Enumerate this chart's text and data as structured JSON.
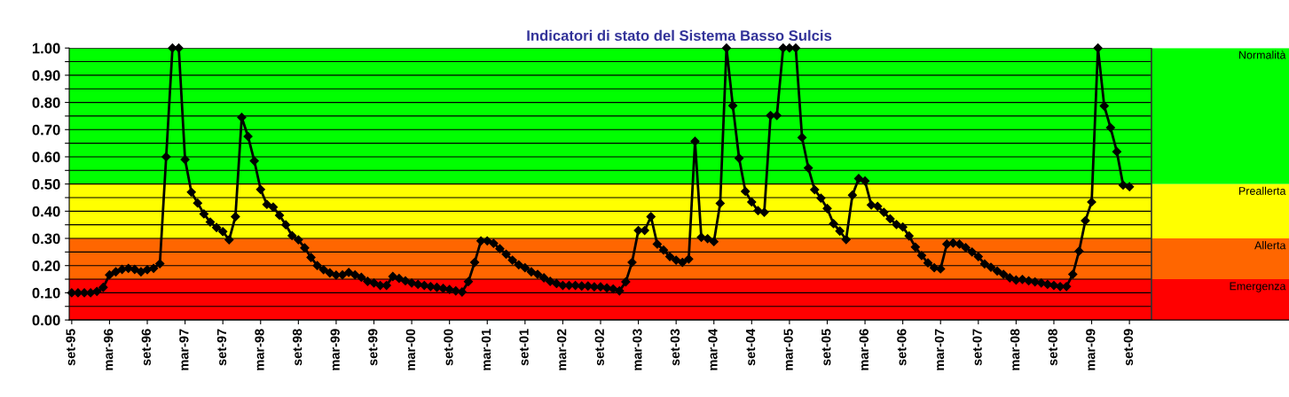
{
  "chart_data": {
    "type": "line",
    "title": "Indicatori di stato del Sistema Basso Sulcis",
    "categories": [
      "set-95",
      null,
      null,
      null,
      null,
      null,
      "mar-96",
      null,
      null,
      null,
      null,
      null,
      "set-96",
      null,
      null,
      null,
      null,
      null,
      "mar-97",
      null,
      null,
      null,
      null,
      null,
      "set-97",
      null,
      null,
      null,
      null,
      null,
      "mar-98",
      null,
      null,
      null,
      null,
      null,
      "set-98",
      null,
      null,
      null,
      null,
      null,
      "mar-99",
      null,
      null,
      null,
      null,
      null,
      "set-99",
      null,
      null,
      null,
      null,
      null,
      "mar-00",
      null,
      null,
      null,
      null,
      null,
      "set-00",
      null,
      null,
      null,
      null,
      null,
      "mar-01",
      null,
      null,
      null,
      null,
      null,
      "set-01",
      null,
      null,
      null,
      null,
      null,
      "mar-02",
      null,
      null,
      null,
      null,
      null,
      "set-02",
      null,
      null,
      null,
      null,
      null,
      "mar-03",
      null,
      null,
      null,
      null,
      null,
      "set-03",
      null,
      null,
      null,
      null,
      null,
      "mar-04",
      null,
      null,
      null,
      null,
      null,
      "set-04",
      null,
      null,
      null,
      null,
      null,
      "mar-05",
      null,
      null,
      null,
      null,
      null,
      "set-05",
      null,
      null,
      null,
      null,
      null,
      "mar-06",
      null,
      null,
      null,
      null,
      null,
      "set-06",
      null,
      null,
      null,
      null,
      null,
      "mar-07",
      null,
      null,
      null,
      null,
      null,
      "set-07",
      null,
      null,
      null,
      null,
      null,
      "mar-08",
      null,
      null,
      null,
      null,
      null,
      "set-08",
      null,
      null,
      null,
      null,
      null,
      "mar-09",
      null,
      null,
      null,
      null,
      null,
      "set-09"
    ],
    "series": [
      {
        "color": "#000000",
        "values": [
          0.1,
          0.1,
          0.1,
          0.1,
          0.105,
          0.12,
          0.166,
          0.177,
          0.186,
          0.19,
          0.186,
          0.177,
          0.185,
          0.19,
          0.207,
          0.6,
          1.0,
          1.0,
          0.59,
          0.47,
          0.43,
          0.39,
          0.36,
          0.34,
          0.325,
          0.295,
          0.38,
          0.745,
          0.675,
          0.585,
          0.48,
          0.425,
          0.415,
          0.385,
          0.35,
          0.31,
          0.295,
          0.265,
          0.23,
          0.2,
          0.185,
          0.173,
          0.165,
          0.166,
          0.175,
          0.166,
          0.157,
          0.142,
          0.136,
          0.127,
          0.127,
          0.16,
          0.153,
          0.144,
          0.136,
          0.131,
          0.127,
          0.123,
          0.12,
          0.116,
          0.112,
          0.107,
          0.103,
          0.141,
          0.212,
          0.291,
          0.291,
          0.282,
          0.262,
          0.242,
          0.22,
          0.203,
          0.192,
          0.177,
          0.168,
          0.155,
          0.142,
          0.134,
          0.127,
          0.127,
          0.127,
          0.125,
          0.125,
          0.122,
          0.122,
          0.118,
          0.114,
          0.107,
          0.14,
          0.212,
          0.329,
          0.329,
          0.38,
          0.279,
          0.257,
          0.233,
          0.22,
          0.212,
          0.224,
          0.657,
          0.304,
          0.299,
          0.288,
          0.429,
          1.0,
          0.788,
          0.595,
          0.473,
          0.434,
          0.402,
          0.396,
          0.752,
          0.752,
          1.0,
          1.0,
          1.0,
          0.671,
          0.559,
          0.479,
          0.448,
          0.41,
          0.354,
          0.327,
          0.296,
          0.459,
          0.52,
          0.511,
          0.423,
          0.418,
          0.396,
          0.372,
          0.351,
          0.342,
          0.309,
          0.268,
          0.237,
          0.21,
          0.192,
          0.188,
          0.279,
          0.283,
          0.279,
          0.266,
          0.25,
          0.233,
          0.206,
          0.194,
          0.18,
          0.168,
          0.155,
          0.147,
          0.149,
          0.144,
          0.14,
          0.136,
          0.131,
          0.127,
          0.123,
          0.123,
          0.168,
          0.253,
          0.365,
          0.434,
          1.0,
          0.787,
          0.707,
          0.619,
          0.496,
          0.49
        ]
      }
    ],
    "ylim": [
      0,
      1
    ],
    "yticks": [
      {
        "value": 0,
        "label": "0.00"
      },
      {
        "value": 0.05,
        "label": null
      },
      {
        "value": 0.1,
        "label": "0.10"
      },
      {
        "value": 0.15,
        "label": null
      },
      {
        "value": 0.2,
        "label": "0.20"
      },
      {
        "value": 0.25,
        "label": null
      },
      {
        "value": 0.3,
        "label": "0.30"
      },
      {
        "value": 0.35,
        "label": null
      },
      {
        "value": 0.4,
        "label": "0.40"
      },
      {
        "value": 0.45,
        "label": null
      },
      {
        "value": 0.5,
        "label": "0.50"
      },
      {
        "value": 0.55,
        "label": null
      },
      {
        "value": 0.6,
        "label": "0.60"
      },
      {
        "value": 0.65,
        "label": null
      },
      {
        "value": 0.7,
        "label": "0.70"
      },
      {
        "value": 0.75,
        "label": null
      },
      {
        "value": 0.8,
        "label": "0.80"
      },
      {
        "value": 0.85,
        "label": null
      },
      {
        "value": 0.9,
        "label": "0.90"
      },
      {
        "value": 0.95,
        "label": null
      },
      {
        "value": 1,
        "label": "1.00"
      }
    ],
    "bands": [
      {
        "axis": "y",
        "from": 0.5,
        "to": 1.0,
        "label": "Normalità",
        "color": "#00ff00"
      },
      {
        "axis": "y",
        "from": 0.3,
        "to": 0.5,
        "label": "Preallerta",
        "color": "#ffff00"
      },
      {
        "axis": "y",
        "from": 0.15,
        "to": 0.3,
        "label": "Allerta",
        "color": "#ff6600"
      },
      {
        "axis": "y",
        "from": 0.0,
        "to": 0.15,
        "label": "Emergenza",
        "color": "#ff0000"
      }
    ],
    "grid": "y",
    "marker": "diamond",
    "line_style": "solid",
    "legend": false
  }
}
